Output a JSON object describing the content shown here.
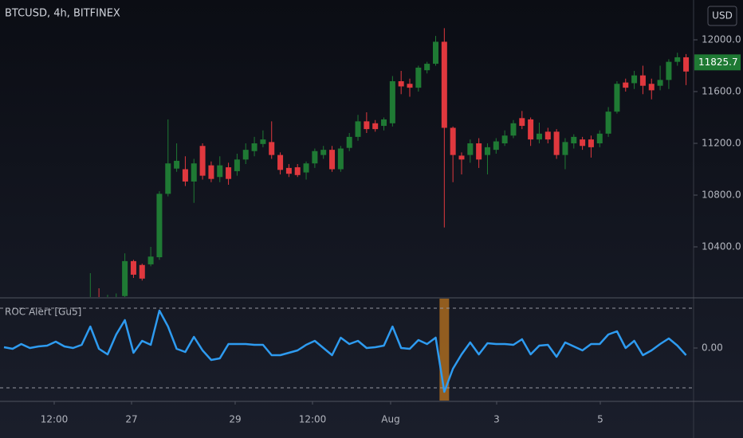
{
  "chart_data": [
    {
      "type": "candlestick",
      "title": "BTCUSD, 4h, BITFINEX",
      "currency": "USD",
      "up_color": "#1f7a34",
      "down_color": "#e0383e",
      "ylim": [
        10012.3,
        12307.7
      ],
      "yticks": [
        {
          "value": 10400,
          "label": "10400.0"
        },
        {
          "value": 10800,
          "label": "10800.0"
        },
        {
          "value": 11200,
          "label": "11200.0"
        },
        {
          "value": 11600,
          "label": "11600.0"
        },
        {
          "value": 12000,
          "label": "12000.0"
        }
      ],
      "last_price": 11825.7,
      "xticks": [
        "12:00",
        "27",
        "29",
        "12:00",
        "Aug",
        "3",
        "5"
      ],
      "open": [
        null,
        null,
        null,
        null,
        null,
        null,
        null,
        null,
        null,
        null,
        9950,
        9980,
        9960,
        9990,
        10020,
        10290,
        10260,
        10265,
        10320,
        10810,
        11005,
        11000,
        10905,
        11180,
        11030,
        10940,
        11015,
        10985,
        11075,
        11140,
        11195,
        11210,
        11110,
        11010,
        11015,
        10975,
        11045,
        11110,
        11150,
        11000,
        11165,
        11250,
        11370,
        11355,
        11335,
        11355,
        11680,
        11660,
        11630,
        11765,
        11815,
        11985,
        11320,
        11105,
        11110,
        11200,
        11110,
        11150,
        11200,
        11260,
        11395,
        11385,
        11230,
        11290,
        11290,
        11110,
        11200,
        11230,
        11230,
        11200,
        11275,
        11445,
        11670,
        11665,
        11725,
        11660,
        11645,
        11690,
        11830,
        11865
      ],
      "high": [
        null,
        null,
        null,
        null,
        null,
        null,
        null,
        null,
        null,
        null,
        10197,
        10080,
        10030,
        10040,
        10350,
        10300,
        10270,
        10400,
        10830,
        11385,
        11200,
        11100,
        11080,
        11200,
        11060,
        11100,
        11050,
        11120,
        11200,
        11250,
        11300,
        11370,
        11130,
        11040,
        11040,
        11060,
        11160,
        11180,
        11180,
        11180,
        11280,
        11420,
        11440,
        11380,
        11400,
        11720,
        11760,
        11700,
        11800,
        11830,
        12030,
        12090,
        11330,
        11130,
        11230,
        11240,
        11200,
        11240,
        11300,
        11380,
        11450,
        11400,
        11360,
        11320,
        11310,
        11240,
        11270,
        11250,
        11260,
        11300,
        11480,
        11680,
        11700,
        11760,
        11800,
        11700,
        11800,
        11850,
        11900,
        11890
      ],
      "low": [
        null,
        null,
        null,
        null,
        null,
        null,
        null,
        null,
        null,
        null,
        9900,
        9920,
        9930,
        9960,
        9990,
        10160,
        10140,
        10250,
        10300,
        10790,
        10980,
        10870,
        10740,
        10920,
        10900,
        10900,
        10880,
        10950,
        11040,
        11100,
        11170,
        11080,
        10960,
        10940,
        10940,
        10920,
        11010,
        11080,
        10980,
        10980,
        11140,
        11220,
        11280,
        11290,
        11300,
        11330,
        11580,
        11560,
        11600,
        11740,
        11800,
        10550,
        10900,
        10960,
        11050,
        11010,
        10960,
        11120,
        11180,
        11240,
        11310,
        11180,
        11200,
        11200,
        11080,
        11000,
        11160,
        11150,
        11090,
        11170,
        11250,
        11430,
        11600,
        11620,
        11580,
        11540,
        11610,
        11620,
        11800,
        11650
      ],
      "close": [
        null,
        null,
        null,
        null,
        null,
        null,
        null,
        null,
        null,
        null,
        9980,
        9960,
        9990,
        10010,
        10290,
        10185,
        10155,
        10325,
        10810,
        11045,
        11065,
        10905,
        11045,
        10950,
        10925,
        11030,
        10925,
        11075,
        11150,
        11200,
        11230,
        11110,
        10995,
        10965,
        10955,
        11045,
        11140,
        11150,
        11000,
        11160,
        11250,
        11370,
        11310,
        11310,
        11385,
        11680,
        11640,
        11630,
        11785,
        11815,
        11985,
        11320,
        11110,
        11075,
        11200,
        11075,
        11170,
        11215,
        11260,
        11355,
        11335,
        11230,
        11275,
        11230,
        11110,
        11210,
        11250,
        11180,
        11170,
        11275,
        11445,
        11660,
        11630,
        11725,
        11645,
        11610,
        11690,
        11830,
        11865,
        11755
      ]
    },
    {
      "type": "line",
      "title": "ROC Alert [Gu5]",
      "color": "#2e9bf0",
      "alert_color": "#c77a1e",
      "ylim": [
        -1.32,
        1.24
      ],
      "yticks": [
        {
          "value": 0,
          "label": "0.00"
        }
      ],
      "bands": [
        -1,
        1
      ],
      "values": [
        0.02,
        -0.02,
        0.1,
        0,
        0.04,
        0.06,
        0.16,
        0.04,
        0,
        0.08,
        0.54,
        -0.02,
        -0.16,
        0.34,
        0.7,
        -0.12,
        0.18,
        0.08,
        0.94,
        0.54,
        -0.02,
        -0.1,
        0.28,
        -0.06,
        -0.3,
        -0.26,
        0.1,
        0.1,
        0.1,
        0.08,
        0.08,
        -0.18,
        -0.18,
        -0.12,
        -0.06,
        0.08,
        0.18,
        0,
        -0.18,
        0.26,
        0.1,
        0.18,
        0,
        0.02,
        0.06,
        0.54,
        0,
        -0.02,
        0.2,
        0.1,
        0.26,
        -1.1,
        -0.52,
        -0.16,
        0.14,
        -0.16,
        0.12,
        0.1,
        0.1,
        0.08,
        0.22,
        -0.16,
        0.06,
        0.08,
        -0.22,
        0.14,
        0.04,
        -0.06,
        0.1,
        0.1,
        0.34,
        0.42,
        0,
        0.18,
        -0.18,
        -0.06,
        0.1,
        0.24,
        0.06,
        -0.18
      ]
    }
  ]
}
